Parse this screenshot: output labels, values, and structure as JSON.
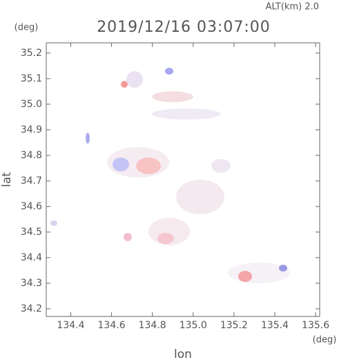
{
  "chart_data": {
    "type": "map",
    "title": "2019/12/16 03:07:00",
    "subtitle": "ALT(km) 2.0",
    "x_label": "lon",
    "y_label": "lat",
    "x_unit": "(deg)",
    "y_unit": "(deg)",
    "xlim": [
      134.28,
      135.62
    ],
    "ylim": [
      34.17,
      35.24
    ],
    "xticks": [
      134.4,
      134.6,
      134.8,
      {
        "value": 135.0,
        "label": "135.0"
      },
      135.2,
      135.4,
      135.6
    ],
    "yticks": [
      34.2,
      34.3,
      34.4,
      34.5,
      34.6,
      34.7,
      34.8,
      34.9,
      {
        "value": 35.0,
        "label": "35.0"
      },
      35.1,
      35.2
    ]
  }
}
